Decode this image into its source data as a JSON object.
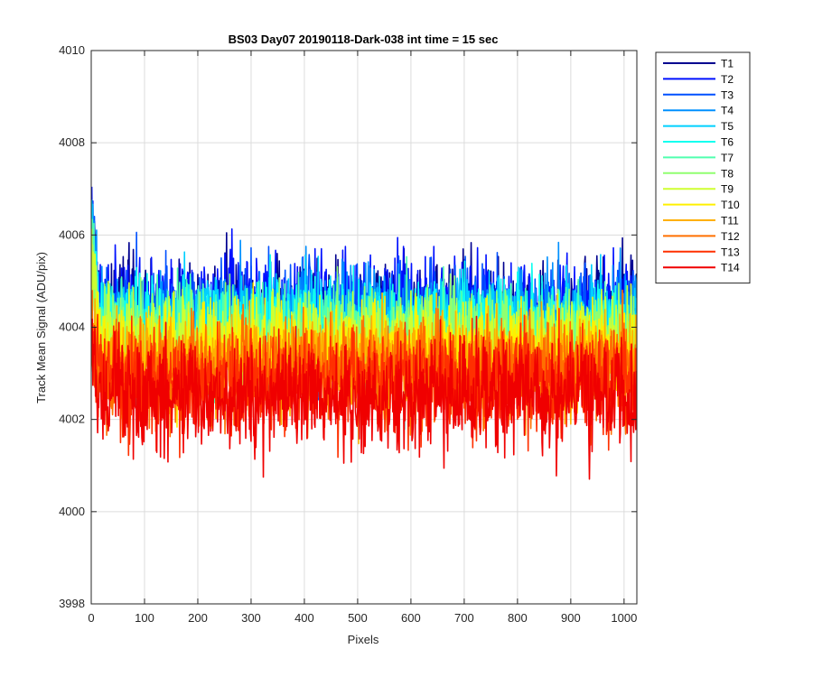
{
  "chart_data": {
    "type": "line",
    "title": "BS03 Day07 20190118-Dark-038 int time = 15 sec",
    "xlabel": "Pixels",
    "ylabel": "Track Mean Signal (ADU/pix)",
    "xlim": [
      0,
      1024
    ],
    "ylim": [
      3998,
      4010
    ],
    "xticks": [
      0,
      100,
      200,
      300,
      400,
      500,
      600,
      700,
      800,
      900,
      1000
    ],
    "yticks": [
      3998,
      4000,
      4002,
      4004,
      4006,
      4008,
      4010
    ],
    "grid": true,
    "legend_position": "outside-top-right",
    "series": [
      {
        "name": "T1",
        "color": "#00008F",
        "center": 4004.2,
        "spread": 1.1
      },
      {
        "name": "T2",
        "color": "#0010FF",
        "center": 4004.3,
        "spread": 1.15
      },
      {
        "name": "T3",
        "color": "#0050FF",
        "center": 4004.1,
        "spread": 1.1
      },
      {
        "name": "T4",
        "color": "#0090FF",
        "center": 4004.0,
        "spread": 1.1
      },
      {
        "name": "T5",
        "color": "#00D0FF",
        "center": 4004.0,
        "spread": 1.05
      },
      {
        "name": "T6",
        "color": "#10FFEF",
        "center": 4003.9,
        "spread": 1.05
      },
      {
        "name": "T7",
        "color": "#50FFAF",
        "center": 4003.8,
        "spread": 1.0
      },
      {
        "name": "T8",
        "color": "#90FF70",
        "center": 4003.7,
        "spread": 1.0
      },
      {
        "name": "T9",
        "color": "#CFFF30",
        "center": 4003.6,
        "spread": 1.0
      },
      {
        "name": "T10",
        "color": "#FFF000",
        "center": 4003.4,
        "spread": 1.0
      },
      {
        "name": "T11",
        "color": "#FFB000",
        "center": 4003.2,
        "spread": 1.0
      },
      {
        "name": "T12",
        "color": "#FF7000",
        "center": 4003.0,
        "spread": 1.05
      },
      {
        "name": "T13",
        "color": "#FF3000",
        "center": 4002.8,
        "spread": 1.05
      },
      {
        "name": "T14",
        "color": "#F00000",
        "center": 4002.5,
        "spread": 1.1
      }
    ]
  }
}
